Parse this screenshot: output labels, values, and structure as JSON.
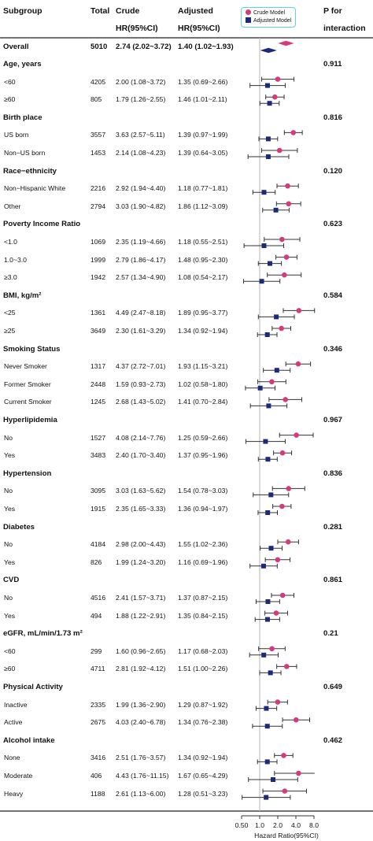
{
  "columns": {
    "subgroup": "Subgroup",
    "total": "Total",
    "crude_line1": "Crude",
    "crude_line2": "HR(95%CI)",
    "adjusted_line1": "Adjusted",
    "adjusted_line2": "HR(95%CI)",
    "p_line1": "P for",
    "p_line2": "interaction"
  },
  "legend": {
    "crude": "Crude Model",
    "adjusted": "Adjusted Model"
  },
  "colors": {
    "crude": "#d63a7c",
    "adjusted": "#1b2a7a",
    "reference_line": "#b5b5b5",
    "legend_border": "#5fd3e0"
  },
  "chart_data": {
    "type": "forest",
    "x_scale": "log2",
    "xlim": [
      0.5,
      8.0
    ],
    "reference": 1.0,
    "xticks": [
      "0.50",
      "1.0",
      "2.0",
      "4.0",
      "8.0"
    ],
    "xlabel": "Hazard Ratio(95%CI)",
    "series": [
      {
        "name": "Crude Model",
        "marker": "circle"
      },
      {
        "name": "Adjusted Model",
        "marker": "square"
      }
    ],
    "overall": {
      "label": "Overall",
      "total": "5010",
      "crude_text": "2.74 (2.02~3.72)",
      "adjusted_text": "1.40 (1.02~1.93)",
      "crude": [
        2.74,
        2.02,
        3.72
      ],
      "adjusted": [
        1.4,
        1.02,
        1.93
      ]
    },
    "groups": [
      {
        "title": "Age, years",
        "p": "0.911",
        "rows": [
          {
            "label": "<60",
            "total": "4205",
            "crude_text": "2.00 (1.08~3.72)",
            "adjusted_text": "1.35 (0.69~2.66)",
            "crude": [
              2.0,
              1.08,
              3.72
            ],
            "adjusted": [
              1.35,
              0.69,
              2.66
            ]
          },
          {
            "label": "≥60",
            "total": "805",
            "crude_text": "1.79 (1.26~2.55)",
            "adjusted_text": "1.46 (1.01~2.11)",
            "crude": [
              1.79,
              1.26,
              2.55
            ],
            "adjusted": [
              1.46,
              1.01,
              2.11
            ]
          }
        ]
      },
      {
        "title": "Birth place",
        "p": "0.816",
        "rows": [
          {
            "label": "US born",
            "total": "3557",
            "crude_text": "3.63 (2.57~5.11)",
            "adjusted_text": "1.39 (0.97~1.99)",
            "crude": [
              3.63,
              2.57,
              5.11
            ],
            "adjusted": [
              1.39,
              0.97,
              1.99
            ]
          },
          {
            "label": "Non−US born",
            "total": "1453",
            "crude_text": "2.14 (1.08~4.23)",
            "adjusted_text": "1.39 (0.64~3.05)",
            "crude": [
              2.14,
              1.08,
              4.23
            ],
            "adjusted": [
              1.39,
              0.64,
              3.05
            ]
          }
        ]
      },
      {
        "title": "Race−ethnicity",
        "p": "0.120",
        "rows": [
          {
            "label": "Non−Hispanic White",
            "total": "2216",
            "crude_text": "2.92 (1.94~4.40)",
            "adjusted_text": "1.18 (0.77~1.81)",
            "crude": [
              2.92,
              1.94,
              4.4
            ],
            "adjusted": [
              1.18,
              0.77,
              1.81
            ]
          },
          {
            "label": "Other",
            "total": "2794",
            "crude_text": "3.03 (1.90~4.82)",
            "adjusted_text": "1.86 (1.12~3.09)",
            "crude": [
              3.03,
              1.9,
              4.82
            ],
            "adjusted": [
              1.86,
              1.12,
              3.09
            ]
          }
        ]
      },
      {
        "title": "Poverty Income Ratio",
        "p": "0.623",
        "rows": [
          {
            "label": "<1.0",
            "total": "1069",
            "crude_text": "2.35 (1.19~4.66)",
            "adjusted_text": "1.18 (0.55~2.51)",
            "crude": [
              2.35,
              1.19,
              4.66
            ],
            "adjusted": [
              1.18,
              0.55,
              2.51
            ]
          },
          {
            "label": "1.0~3.0",
            "total": "1999",
            "crude_text": "2.79 (1.86~4.17)",
            "adjusted_text": "1.48 (0.95~2.30)",
            "crude": [
              2.79,
              1.86,
              4.17
            ],
            "adjusted": [
              1.48,
              0.95,
              2.3
            ]
          },
          {
            "label": "≥3.0",
            "total": "1942",
            "crude_text": "2.57 (1.34~4.90)",
            "adjusted_text": "1.08 (0.54~2.17)",
            "crude": [
              2.57,
              1.34,
              4.9
            ],
            "adjusted": [
              1.08,
              0.54,
              2.17
            ]
          }
        ]
      },
      {
        "title": "BMI, kg/m²",
        "p": "0.584",
        "rows": [
          {
            "label": "<25",
            "total": "1361",
            "crude_text": "4.49 (2.47~8.18)",
            "adjusted_text": "1.89 (0.95~3.77)",
            "crude": [
              4.49,
              2.47,
              8.18
            ],
            "adjusted": [
              1.89,
              0.95,
              3.77
            ]
          },
          {
            "label": "≥25",
            "total": "3649",
            "crude_text": "2.30 (1.61~3.29)",
            "adjusted_text": "1.34 (0.92~1.94)",
            "crude": [
              2.3,
              1.61,
              3.29
            ],
            "adjusted": [
              1.34,
              0.92,
              1.94
            ]
          }
        ]
      },
      {
        "title": "Smoking Status",
        "p": "0.346",
        "rows": [
          {
            "label": "Never Smoker",
            "total": "1317",
            "crude_text": "4.37 (2.72~7.01)",
            "adjusted_text": "1.93 (1.15~3.21)",
            "crude": [
              4.37,
              2.72,
              7.01
            ],
            "adjusted": [
              1.93,
              1.15,
              3.21
            ]
          },
          {
            "label": "Former Smoker",
            "total": "2448",
            "crude_text": "1.59 (0.93~2.73)",
            "adjusted_text": "1.02 (0.58~1.80)",
            "crude": [
              1.59,
              0.93,
              2.73
            ],
            "adjusted": [
              1.02,
              0.58,
              1.8
            ]
          },
          {
            "label": "Current Smoker",
            "total": "1245",
            "crude_text": "2.68 (1.43~5.02)",
            "adjusted_text": "1.41 (0.70~2.84)",
            "crude": [
              2.68,
              1.43,
              5.02
            ],
            "adjusted": [
              1.41,
              0.7,
              2.84
            ]
          }
        ]
      },
      {
        "title": "Hyperlipidemia",
        "p": "0.967",
        "rows": [
          {
            "label": "No",
            "total": "1527",
            "crude_text": "4.08 (2.14~7.76)",
            "adjusted_text": "1.25 (0.59~2.66)",
            "crude": [
              4.08,
              2.14,
              7.76
            ],
            "adjusted": [
              1.25,
              0.59,
              2.66
            ]
          },
          {
            "label": "Yes",
            "total": "3483",
            "crude_text": "2.40 (1.70~3.40)",
            "adjusted_text": "1.37 (0.95~1.96)",
            "crude": [
              2.4,
              1.7,
              3.4
            ],
            "adjusted": [
              1.37,
              0.95,
              1.96
            ]
          }
        ]
      },
      {
        "title": "Hypertension",
        "p": "0.836",
        "rows": [
          {
            "label": "No",
            "total": "3095",
            "crude_text": "3.03 (1.63~5.62)",
            "adjusted_text": "1.54 (0.78~3.03)",
            "crude": [
              3.03,
              1.63,
              5.62
            ],
            "adjusted": [
              1.54,
              0.78,
              3.03
            ]
          },
          {
            "label": "Yes",
            "total": "1915",
            "crude_text": "2.35 (1.65~3.33)",
            "adjusted_text": "1.36 (0.94~1.97)",
            "crude": [
              2.35,
              1.65,
              3.33
            ],
            "adjusted": [
              1.36,
              0.94,
              1.97
            ]
          }
        ]
      },
      {
        "title": "Diabetes",
        "p": "0.281",
        "rows": [
          {
            "label": "No",
            "total": "4184",
            "crude_text": "2.98 (2.00~4.43)",
            "adjusted_text": "1.55 (1.02~2.36)",
            "crude": [
              2.98,
              2.0,
              4.43
            ],
            "adjusted": [
              1.55,
              1.02,
              2.36
            ]
          },
          {
            "label": "Yes",
            "total": "826",
            "crude_text": "1.99 (1.24~3.20)",
            "adjusted_text": "1.16 (0.69~1.96)",
            "crude": [
              1.99,
              1.24,
              3.2
            ],
            "adjusted": [
              1.16,
              0.69,
              1.96
            ]
          }
        ]
      },
      {
        "title": "CVD",
        "p": "0.861",
        "rows": [
          {
            "label": "No",
            "total": "4516",
            "crude_text": "2.41 (1.57~3.71)",
            "adjusted_text": "1.37 (0.87~2.15)",
            "crude": [
              2.41,
              1.57,
              3.71
            ],
            "adjusted": [
              1.37,
              0.87,
              2.15
            ]
          },
          {
            "label": "Yes",
            "total": "494",
            "crude_text": "1.88 (1.22~2.91)",
            "adjusted_text": "1.35 (0.84~2.15)",
            "crude": [
              1.88,
              1.22,
              2.91
            ],
            "adjusted": [
              1.35,
              0.84,
              2.15
            ]
          }
        ]
      },
      {
        "title": "eGFR, mL/min/1.73 m²",
        "p": "0.21",
        "rows": [
          {
            "label": "<60",
            "total": "299",
            "crude_text": "1.60 (0.96~2.65)",
            "adjusted_text": "1.17 (0.68~2.03)",
            "crude": [
              1.6,
              0.96,
              2.65
            ],
            "adjusted": [
              1.17,
              0.68,
              2.03
            ]
          },
          {
            "label": "≥60",
            "total": "4711",
            "crude_text": "2.81 (1.92~4.12)",
            "adjusted_text": "1.51 (1.00~2.26)",
            "crude": [
              2.81,
              1.92,
              4.12
            ],
            "adjusted": [
              1.51,
              1.0,
              2.26
            ]
          }
        ]
      },
      {
        "title": "Physical Activity",
        "p": "0.649",
        "rows": [
          {
            "label": "Inactive",
            "total": "2335",
            "crude_text": "1.99 (1.36~2.90)",
            "adjusted_text": "1.29 (0.87~1.92)",
            "crude": [
              1.99,
              1.36,
              2.9
            ],
            "adjusted": [
              1.29,
              0.87,
              1.92
            ]
          },
          {
            "label": "Active",
            "total": "2675",
            "crude_text": "4.03 (2.40~6.78)",
            "adjusted_text": "1.34 (0.76~2.38)",
            "crude": [
              4.03,
              2.4,
              6.78
            ],
            "adjusted": [
              1.34,
              0.76,
              2.38
            ]
          }
        ]
      },
      {
        "title": "Alcohol intake",
        "p": "0.462",
        "rows": [
          {
            "label": "None",
            "total": "3416",
            "crude_text": "2.51 (1.76~3.57)",
            "adjusted_text": "1.34 (0.92~1.94)",
            "crude": [
              2.51,
              1.76,
              3.57
            ],
            "adjusted": [
              1.34,
              0.92,
              1.94
            ]
          },
          {
            "label": "Moderate",
            "total": "406",
            "crude_text": "4.43 (1.76~11.15)",
            "adjusted_text": "1.67 (0.65~4.29)",
            "crude": [
              4.43,
              1.76,
              11.15
            ],
            "adjusted": [
              1.67,
              0.65,
              4.29
            ]
          },
          {
            "label": "Heavy",
            "total": "1188",
            "crude_text": "2.61 (1.13~6.00)",
            "adjusted_text": "1.28 (0.51~3.23)",
            "crude": [
              2.61,
              1.13,
              6.0
            ],
            "adjusted": [
              1.28,
              0.51,
              3.23
            ]
          }
        ]
      }
    ]
  }
}
